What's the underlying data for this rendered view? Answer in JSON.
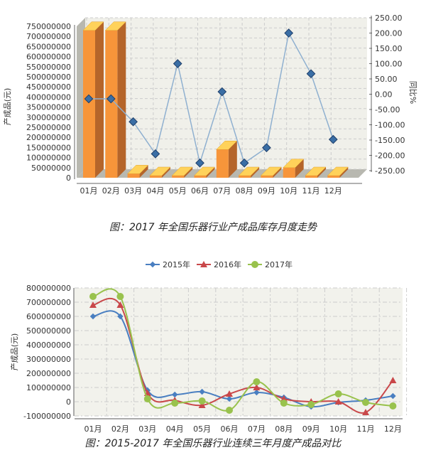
{
  "chart_data": [
    {
      "type": "bar+line",
      "title": "",
      "categories": [
        "01月",
        "02月",
        "03月",
        "04月",
        "05月",
        "06月",
        "07月",
        "08月",
        "09月",
        "10月",
        "11月",
        "12月"
      ],
      "ylabel": "产成品(元)",
      "y2label": "同比%",
      "ylim": [
        0,
        750000000
      ],
      "y2lim": [
        -250,
        250
      ],
      "yticks": [
        "0",
        "50000000",
        "100000000",
        "150000000",
        "200000000",
        "250000000",
        "300000000",
        "350000000",
        "400000000",
        "450000000",
        "500000000",
        "550000000",
        "600000000",
        "650000000",
        "700000000",
        "750000000"
      ],
      "y2ticks": [
        "-250.00",
        "-200.00",
        "-150.00",
        "-100.00",
        "-50.00",
        "0.00",
        "50.00",
        "100.00",
        "150.00",
        "200.00",
        "250.00"
      ],
      "series": [
        {
          "name": "产成品(元)",
          "type": "bar",
          "color": "#f7953a",
          "values": [
            730000000,
            730000000,
            20000000,
            0,
            8000000,
            0,
            140000000,
            0,
            0,
            50000000,
            0,
            0
          ]
        },
        {
          "name": "同比%",
          "type": "line",
          "color": "#3a6ea5",
          "values": [
            -15,
            -15,
            -90,
            -195,
            100,
            -225,
            8,
            -225,
            -175,
            200,
            67,
            -148
          ]
        }
      ],
      "grid": true
    },
    {
      "type": "line",
      "categories": [
        "01月",
        "02月",
        "03月",
        "04月",
        "05月",
        "06月",
        "07月",
        "08月",
        "09月",
        "10月",
        "11月",
        "12月"
      ],
      "ylabel": "产成品(元)",
      "ylim": [
        -100000000,
        800000000
      ],
      "yticks": [
        "-100000000",
        "0",
        "100000000",
        "200000000",
        "300000000",
        "400000000",
        "500000000",
        "600000000",
        "700000000",
        "800000000"
      ],
      "legend": "top",
      "series": [
        {
          "name": "2015年",
          "color": "#4a7fc1",
          "marker": "diamond",
          "values": [
            600000000,
            600000000,
            80000000,
            50000000,
            70000000,
            20000000,
            65000000,
            30000000,
            -35000000,
            -5000000,
            10000000,
            40000000
          ]
        },
        {
          "name": "2016年",
          "color": "#c9484a",
          "marker": "triangle",
          "values": [
            680000000,
            680000000,
            60000000,
            10000000,
            -25000000,
            55000000,
            100000000,
            20000000,
            0,
            0,
            -75000000,
            150000000
          ]
        },
        {
          "name": "2017年",
          "color": "#99c24d",
          "marker": "circle",
          "values": [
            740000000,
            740000000,
            20000000,
            -10000000,
            5000000,
            -60000000,
            140000000,
            -10000000,
            -20000000,
            55000000,
            -5000000,
            -30000000
          ]
        }
      ],
      "grid": true
    }
  ],
  "captions": [
    "图：2017 年全国乐器行业产成品库存月度走势",
    "图：2015-2017 年全国乐器行业连续三年月度产成品对比"
  ]
}
